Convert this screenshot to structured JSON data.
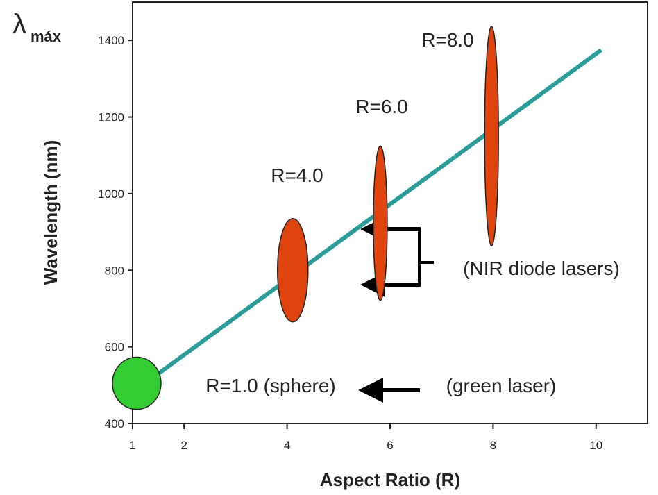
{
  "chart_data": {
    "type": "scatter",
    "x_label": "Aspect Ratio (R)",
    "y_label": "Wavelength (nm)",
    "y_label_symbol": "λ",
    "y_label_subscript": "máx",
    "xlim": [
      1,
      11
    ],
    "ylim": [
      400,
      1500
    ],
    "xticks": [
      1,
      2,
      4,
      6,
      8,
      10
    ],
    "yticks": [
      400,
      600,
      800,
      1000,
      1200,
      1400
    ],
    "trend": {
      "color": "#2a9d9b",
      "x": [
        1.5,
        10.1
      ],
      "y": [
        530,
        1375
      ]
    },
    "points": {
      "x": [
        1.08,
        4.11,
        5.81,
        7.97
      ],
      "values": [
        505,
        800,
        923,
        1150
      ],
      "y_low": [
        436,
        660,
        717,
        862
      ],
      "y_high": [
        572,
        930,
        1120,
        1435
      ],
      "labels": [
        "R=1.0 (sphere)",
        "R=4.0",
        "R=6.0",
        "R=8.0"
      ],
      "colors": [
        "#33cc33",
        "#e0440e",
        "#e0440e",
        "#e0440e"
      ]
    },
    "annotations": [
      "(green laser)",
      "(NIR diode lasers)"
    ]
  }
}
